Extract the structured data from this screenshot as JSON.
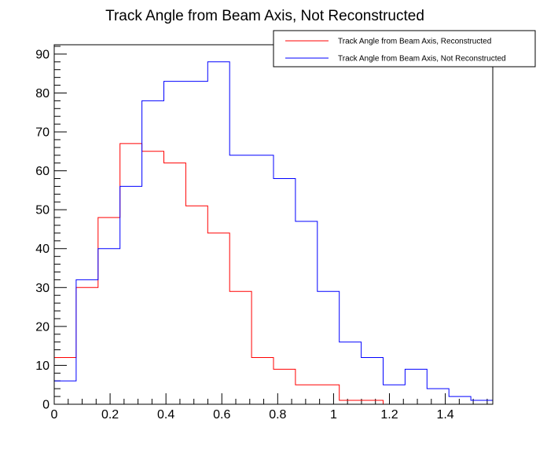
{
  "chart_data": {
    "type": "histogram",
    "title": "Track Angle from Beam Axis, Not Reconstructed",
    "xlabel": "",
    "ylabel": "",
    "xlim": [
      0,
      1.57
    ],
    "ylim": [
      0,
      92.4
    ],
    "grid": false,
    "legend_position": "top-right",
    "bin_edges": [
      0,
      0.0785,
      0.157,
      0.2355,
      0.314,
      0.3925,
      0.471,
      0.5495,
      0.628,
      0.7065,
      0.785,
      0.8635,
      0.942,
      1.0205,
      1.099,
      1.1775,
      1.256,
      1.3345,
      1.413,
      1.4915,
      1.57
    ],
    "x_ticks": [
      "0",
      "0.2",
      "0.4",
      "0.6",
      "0.8",
      "1",
      "1.2",
      "1.4"
    ],
    "y_ticks": [
      "0",
      "10",
      "20",
      "30",
      "40",
      "50",
      "60",
      "70",
      "80",
      "90"
    ],
    "series": [
      {
        "name": "Track Angle from Beam Axis, Reconstructed",
        "color": "#ff0000",
        "values": [
          12,
          30,
          48,
          67,
          65,
          62,
          51,
          44,
          29,
          12,
          9,
          5,
          5,
          1,
          1,
          0,
          0,
          0,
          0,
          0
        ]
      },
      {
        "name": "Track Angle from Beam Axis, Not Reconstructed",
        "color": "#0000ff",
        "values": [
          6,
          32,
          40,
          56,
          78,
          83,
          83,
          88,
          64,
          64,
          58,
          47,
          29,
          16,
          12,
          5,
          9,
          4,
          2,
          1
        ]
      }
    ]
  }
}
